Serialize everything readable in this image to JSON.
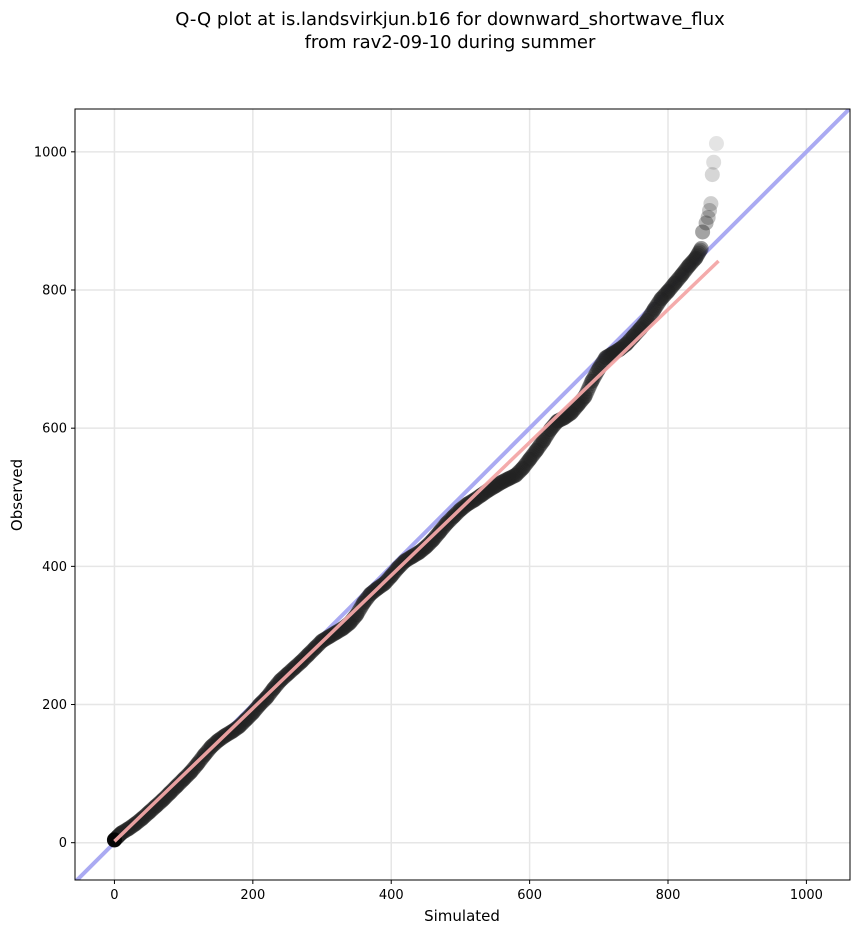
{
  "chart_data": {
    "type": "scatter",
    "title_line1": "Q-Q plot at is.landsvirkjun.b16 for downward_shortwave_flux",
    "title_line2": "from rav2-09-10 during summer",
    "xlabel": "Simulated",
    "ylabel": "Observed",
    "xlim": [
      -57,
      1063
    ],
    "ylim": [
      -54,
      1062
    ],
    "grid": true,
    "x_ticks": [
      0,
      200,
      400,
      600,
      800,
      1000
    ],
    "y_ticks": [
      0,
      200,
      400,
      600,
      800,
      1000
    ],
    "x_tick_labels": [
      "0",
      "200",
      "400",
      "600",
      "800",
      "1000"
    ],
    "y_tick_labels": [
      "0",
      "200",
      "400",
      "600",
      "800",
      "1000"
    ],
    "reference_line": {
      "name": "1:1",
      "color": "#aaaaf2",
      "x": [
        -57,
        1063
      ],
      "y": [
        -57,
        1063
      ]
    },
    "fit_line": {
      "color": "#f3a6a6",
      "x": [
        0,
        873
      ],
      "y": [
        2,
        842
      ]
    },
    "points_color": "#222222",
    "quantiles": [
      [
        0,
        4
      ],
      [
        5,
        9
      ],
      [
        10,
        14
      ],
      [
        20,
        20
      ],
      [
        30,
        27
      ],
      [
        40,
        35
      ],
      [
        50,
        44
      ],
      [
        60,
        53
      ],
      [
        70,
        62
      ],
      [
        80,
        72
      ],
      [
        90,
        82
      ],
      [
        100,
        92
      ],
      [
        110,
        102
      ],
      [
        120,
        114
      ],
      [
        130,
        127
      ],
      [
        140,
        139
      ],
      [
        150,
        148
      ],
      [
        160,
        155
      ],
      [
        170,
        161
      ],
      [
        180,
        168
      ],
      [
        190,
        178
      ],
      [
        200,
        188
      ],
      [
        210,
        200
      ],
      [
        220,
        210
      ],
      [
        230,
        223
      ],
      [
        240,
        235
      ],
      [
        250,
        244
      ],
      [
        260,
        253
      ],
      [
        270,
        262
      ],
      [
        280,
        272
      ],
      [
        290,
        282
      ],
      [
        300,
        292
      ],
      [
        310,
        298
      ],
      [
        320,
        304
      ],
      [
        330,
        310
      ],
      [
        340,
        318
      ],
      [
        350,
        330
      ],
      [
        360,
        347
      ],
      [
        370,
        360
      ],
      [
        380,
        368
      ],
      [
        390,
        375
      ],
      [
        400,
        386
      ],
      [
        410,
        398
      ],
      [
        420,
        408
      ],
      [
        430,
        414
      ],
      [
        440,
        420
      ],
      [
        450,
        428
      ],
      [
        460,
        438
      ],
      [
        470,
        450
      ],
      [
        480,
        462
      ],
      [
        490,
        472
      ],
      [
        500,
        482
      ],
      [
        510,
        490
      ],
      [
        520,
        496
      ],
      [
        530,
        503
      ],
      [
        540,
        510
      ],
      [
        550,
        516
      ],
      [
        560,
        522
      ],
      [
        570,
        527
      ],
      [
        580,
        532
      ],
      [
        590,
        542
      ],
      [
        600,
        555
      ],
      [
        610,
        568
      ],
      [
        620,
        582
      ],
      [
        630,
        598
      ],
      [
        640,
        610
      ],
      [
        650,
        615
      ],
      [
        660,
        622
      ],
      [
        670,
        634
      ],
      [
        680,
        646
      ],
      [
        690,
        668
      ],
      [
        700,
        686
      ],
      [
        710,
        702
      ],
      [
        720,
        708
      ],
      [
        730,
        714
      ],
      [
        740,
        722
      ],
      [
        750,
        733
      ],
      [
        760,
        744
      ],
      [
        770,
        756
      ],
      [
        780,
        772
      ],
      [
        790,
        787
      ],
      [
        800,
        798
      ],
      [
        810,
        810
      ],
      [
        820,
        822
      ],
      [
        830,
        835
      ],
      [
        840,
        846
      ],
      [
        848,
        860
      ],
      [
        850,
        884
      ],
      [
        855,
        897
      ],
      [
        858,
        905
      ],
      [
        860,
        915
      ],
      [
        862,
        925
      ],
      [
        864,
        967
      ],
      [
        866,
        985
      ],
      [
        870,
        1012
      ]
    ]
  }
}
